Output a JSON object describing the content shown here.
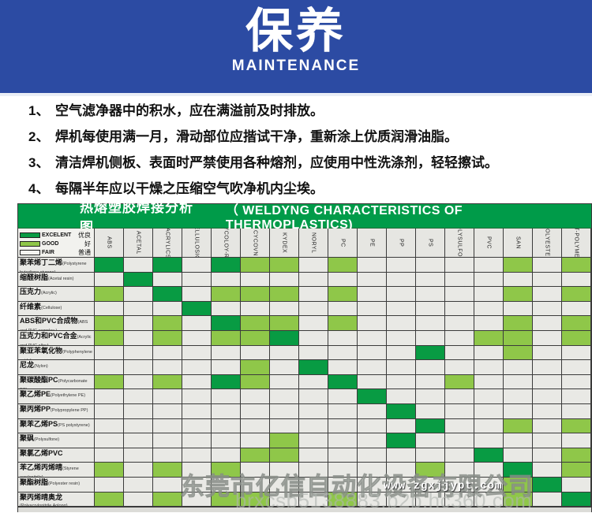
{
  "banner": {
    "title_cn": "保养",
    "title_en": "MAINTENANCE"
  },
  "instructions": [
    {
      "num": "1、",
      "text": "空气滤净器中的积水，应在满溢前及时排放。"
    },
    {
      "num": "2、",
      "text": "焊机每使用满一月，滑动部位应揩试干净，重新涂上优质润滑油脂。"
    },
    {
      "num": "3、",
      "text": "清洁焊机侧板、表面时严禁使用各种熔剂，应使用中性洗涤剂，轻轻擦试。"
    },
    {
      "num": "4、",
      "text": "每隔半年应以干燥之压缩空气吹净机内尘埃。"
    }
  ],
  "table": {
    "title_cn": "热熔塑胶焊接分析图",
    "title_en": "（ WELDYNG  CHARACTERISTICS  OF  THERMOPLASTICS)",
    "legend": [
      {
        "grade": "excellent",
        "label_en": "EXCELENT",
        "label_cn": "优良"
      },
      {
        "grade": "good",
        "label_en": "GOOD",
        "label_cn": "好"
      },
      {
        "grade": "fair",
        "label_en": "FAIR",
        "label_cn": "普通"
      }
    ]
  },
  "chart_data": {
    "type": "heatmap",
    "title": "热熔塑胶焊接分析图 (WELDYNG CHARACTERISTICS OF THERMOPLASTICS)",
    "legend_position": "top-left",
    "value_legend": {
      "D": "excellent 优良",
      "L": "good 好",
      "W": "fair/blank 普通"
    },
    "colors": {
      "excellent": "#089b43",
      "good": "#8fc749",
      "blank": "#e9e9e5"
    },
    "columns": [
      "ABS",
      "ACETAL",
      "ACRYLICS",
      "CELLULOSICS",
      "CYCOLOY-RC",
      "CYCOVN",
      "KYDEX",
      "NORYL",
      "PC",
      "PE",
      "PP",
      "PS",
      "POLYSULFONE",
      "PVC",
      "SAN",
      "POLYESTER",
      "XT-POLYMER"
    ],
    "rows": [
      {
        "cn": "聚苯烯丁二烯",
        "en": "(Polystyrene butadiene styrene)"
      },
      {
        "cn": "缩醛树脂",
        "en": "(Acetal resin)"
      },
      {
        "cn": "压克力",
        "en": "(Acrylic)"
      },
      {
        "cn": "纤维素",
        "en": "(Cellulose)"
      },
      {
        "cn": "ABS和PVC合成物",
        "en": "(ABS and PVC complex.)"
      },
      {
        "cn": "压克力和PVC合金",
        "en": "(Acrylic and PVC alloy)"
      },
      {
        "cn": "聚亚苯氧化物",
        "en": "(Polyphenylene oxide)"
      },
      {
        "cn": "尼龙",
        "en": "(Nylon)"
      },
      {
        "cn": "聚碳酸酯PC",
        "en": "(Polycarbonate PC)"
      },
      {
        "cn": "聚乙烯PE",
        "en": "(Polyethylene PE)"
      },
      {
        "cn": "聚丙烯PP",
        "en": "(Polypropylene PP)"
      },
      {
        "cn": "聚苯乙烯PS",
        "en": "(PS polystyrene)"
      },
      {
        "cn": "聚砜",
        "en": "(Polysulfone)"
      },
      {
        "cn": "聚氯乙烯PVC",
        "en": ""
      },
      {
        "cn": "苯乙烯丙烯晴",
        "en": "(Styrene acrylonitrile)"
      },
      {
        "cn": "聚酯树脂",
        "en": "(Polyester resin)"
      },
      {
        "cn": "聚丙烯晴奥龙",
        "en": "(Polyacrylonitrile Aolong)"
      }
    ],
    "values": [
      "DWDWDLLWLWWWWWLWL",
      "WDWWWWWWWWWWWWWWW",
      "LWDWLLLWLWWWWWLWL",
      "WWWDWWWWWWWWWWWWW",
      "LWLWDLLWLWWWWWLWL",
      "LWLWLLDWWWWWWLLWL",
      "WWWWWWWWWWWDWWLWW",
      "WWWWWLWDWWWWWWWWW",
      "LWLWDLWWDWWWLWWWW",
      "WWWWWWWWWDWWWWWWW",
      "WWWWWWWWWWDWWWWWW",
      "WWWWWWWWWWWDWWLWL",
      "WWWWWWLWWWDWWWWWW",
      "WWWWWLLWWWWWWDWWL",
      "LWLWLWWWWWWLWWDWL",
      "WWWWWWWWWWWWWWLDW",
      "LWLWLLWWLWWWWWLWD"
    ]
  },
  "watermark": {
    "company": "东莞市亿信自动化设备有限公司",
    "url1": "www.zgxjjypt.com",
    "url2": "brxcsb5138883.b2b.hc360.com"
  }
}
